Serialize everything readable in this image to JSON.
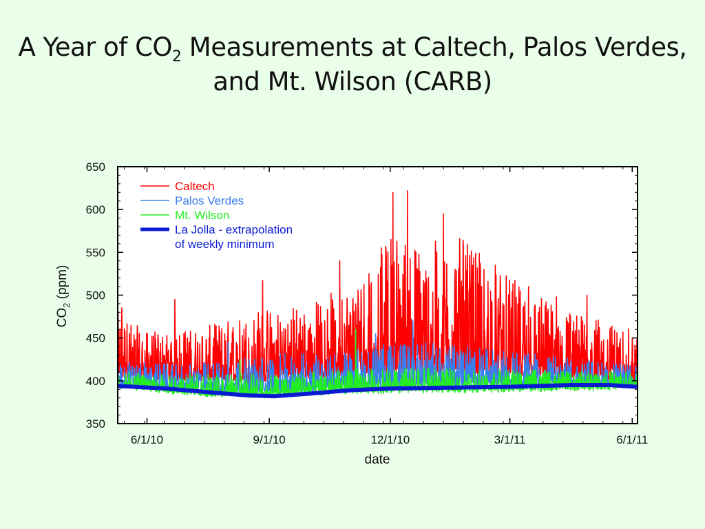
{
  "slide": {
    "title_part1": "A Year of CO",
    "title_sub": "2",
    "title_part2": " Measurements at Caltech, Palos Verdes,",
    "title_line2": "and Mt. Wilson (CARB)"
  },
  "colors": {
    "background": "#eaffea",
    "caltech": "#ff0000",
    "palos_verdes": "#3a7ff0",
    "mt_wilson": "#22ee22",
    "la_jolla": "#0a1ad0"
  },
  "chart_data": {
    "type": "line",
    "xlabel": "date",
    "ylabel_main": "CO",
    "ylabel_sub": "2",
    "ylabel_unit": " (ppm)",
    "ylim": [
      350,
      650
    ],
    "yticks": [
      350,
      400,
      450,
      500,
      550,
      600,
      650
    ],
    "xlim": [
      "2010-05-10",
      "2011-06-05"
    ],
    "xticks": [
      {
        "date": "2010-06-01",
        "label": "6/1/10"
      },
      {
        "date": "2010-09-01",
        "label": "9/1/10"
      },
      {
        "date": "2010-12-01",
        "label": "12/1/10"
      },
      {
        "date": "2011-03-01",
        "label": "3/1/11"
      },
      {
        "date": "2011-06-01",
        "label": "6/1/11"
      }
    ],
    "legend_position": "top-left",
    "series": [
      {
        "name": "Caltech",
        "key": "caltech",
        "kind": "noisy",
        "baseline": [
          [
            "2010-05-10",
            405
          ],
          [
            "2010-07-01",
            402
          ],
          [
            "2010-08-15",
            400
          ],
          [
            "2010-10-01",
            405
          ],
          [
            "2010-11-15",
            410
          ],
          [
            "2010-12-20",
            412
          ],
          [
            "2011-02-01",
            410
          ],
          [
            "2011-04-01",
            405
          ],
          [
            "2011-06-05",
            400
          ]
        ],
        "envelope": [
          [
            "2010-05-10",
            470
          ],
          [
            "2010-06-01",
            450
          ],
          [
            "2010-07-15",
            455
          ],
          [
            "2010-08-25",
            475
          ],
          [
            "2010-10-01",
            480
          ],
          [
            "2010-11-10",
            510
          ],
          [
            "2010-12-05",
            560
          ],
          [
            "2010-12-25",
            540
          ],
          [
            "2011-01-20",
            550
          ],
          [
            "2011-02-20",
            515
          ],
          [
            "2011-03-20",
            490
          ],
          [
            "2011-04-20",
            470
          ],
          [
            "2011-06-05",
            450
          ]
        ],
        "peaks": [
          [
            "2010-05-13",
            485
          ],
          [
            "2010-06-22",
            495
          ],
          [
            "2010-08-27",
            517
          ],
          [
            "2010-10-24",
            540
          ],
          [
            "2010-11-15",
            525
          ],
          [
            "2010-11-28",
            545
          ],
          [
            "2010-12-03",
            620
          ],
          [
            "2010-12-14",
            622
          ],
          [
            "2011-01-10",
            595
          ],
          [
            "2011-01-25",
            558
          ],
          [
            "2011-02-18",
            535
          ],
          [
            "2011-03-15",
            510
          ],
          [
            "2011-04-05",
            498
          ],
          [
            "2011-04-28",
            500
          ]
        ]
      },
      {
        "name": "Palos Verdes",
        "key": "palos_verdes",
        "kind": "noisy",
        "baseline": [
          [
            "2010-05-10",
            395
          ],
          [
            "2010-07-15",
            388
          ],
          [
            "2010-09-01",
            387
          ],
          [
            "2010-11-01",
            392
          ],
          [
            "2010-12-15",
            395
          ],
          [
            "2011-03-01",
            396
          ],
          [
            "2011-06-05",
            396
          ]
        ],
        "envelope": [
          [
            "2010-05-10",
            420
          ],
          [
            "2010-07-01",
            415
          ],
          [
            "2010-09-01",
            425
          ],
          [
            "2010-11-01",
            430
          ],
          [
            "2010-12-15",
            440
          ],
          [
            "2011-03-01",
            430
          ],
          [
            "2011-06-05",
            415
          ]
        ],
        "peaks": [
          [
            "2010-08-01",
            445
          ],
          [
            "2010-11-20",
            455
          ],
          [
            "2010-12-18",
            470
          ],
          [
            "2011-01-28",
            440
          ]
        ]
      },
      {
        "name": "Mt. Wilson",
        "key": "mt_wilson",
        "kind": "noisy",
        "baseline": [
          [
            "2010-05-10",
            393
          ],
          [
            "2010-07-15",
            383
          ],
          [
            "2010-09-01",
            382
          ],
          [
            "2010-11-01",
            387
          ],
          [
            "2010-12-15",
            388
          ],
          [
            "2011-03-01",
            389
          ],
          [
            "2011-06-05",
            392
          ]
        ],
        "envelope": [
          [
            "2010-05-10",
            408
          ],
          [
            "2010-07-15",
            405
          ],
          [
            "2010-09-01",
            405
          ],
          [
            "2010-11-01",
            410
          ],
          [
            "2010-12-15",
            412
          ],
          [
            "2011-03-01",
            410
          ],
          [
            "2011-06-05",
            408
          ]
        ],
        "peaks": [
          [
            "2010-11-05",
            460
          ],
          [
            "2010-08-10",
            425
          ]
        ]
      },
      {
        "name": "La Jolla - extrapolation of weekly minimum",
        "legend_lines": [
          "La Jolla - extrapolation",
          "of weekly minimum"
        ],
        "key": "la_jolla",
        "kind": "smooth",
        "points": [
          [
            "2010-05-10",
            394
          ],
          [
            "2010-06-15",
            391
          ],
          [
            "2010-07-15",
            387
          ],
          [
            "2010-08-15",
            383
          ],
          [
            "2010-09-05",
            382
          ],
          [
            "2010-10-01",
            385
          ],
          [
            "2010-11-01",
            389
          ],
          [
            "2010-12-01",
            391
          ],
          [
            "2011-01-15",
            392
          ],
          [
            "2011-03-01",
            393
          ],
          [
            "2011-04-15",
            395
          ],
          [
            "2011-05-15",
            395
          ],
          [
            "2011-06-05",
            393
          ]
        ]
      }
    ]
  }
}
